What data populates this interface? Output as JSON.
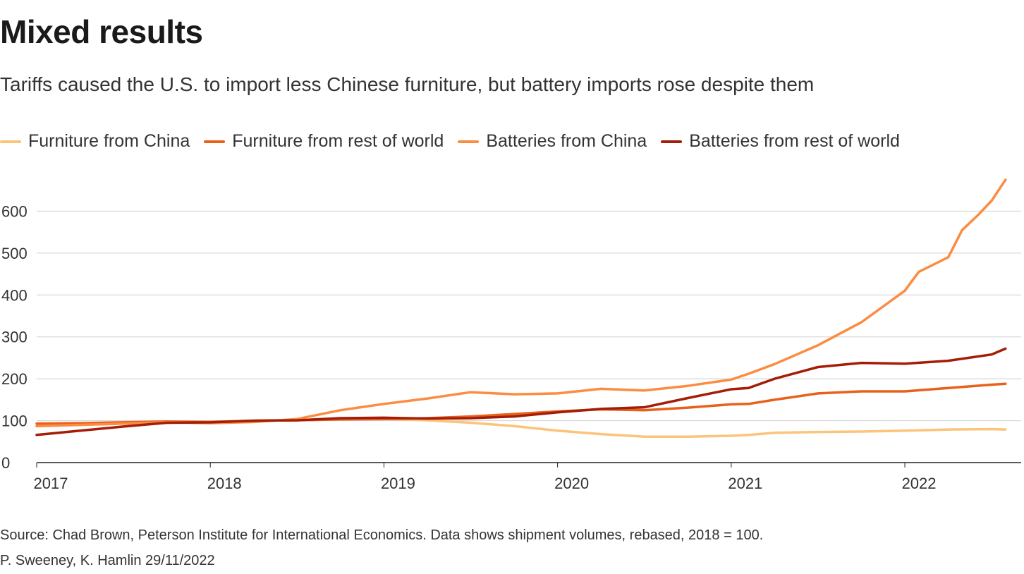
{
  "header": {
    "title": "Mixed results",
    "subtitle": "Tariffs caused the U.S. to import less Chinese furniture, but battery imports rose despite them"
  },
  "footer": {
    "source": "Source: Chad Brown, Peterson Institute for International Economics. Data shows shipment volumes, rebased, 2018 = 100.",
    "byline": "P. Sweeney, K. Hamlin 29/11/2022"
  },
  "chart_data": {
    "type": "line",
    "title": "Mixed results",
    "subtitle": "Tariffs caused the U.S. to import less Chinese furniture, but battery imports rose despite them",
    "xlabel": "",
    "ylabel": "",
    "xlim": [
      2017.0,
      2022.67
    ],
    "ylim": [
      0,
      700
    ],
    "xticks": [
      2017,
      2018,
      2019,
      2020,
      2021,
      2022
    ],
    "xtick_labels": [
      "2017",
      "2018",
      "2019",
      "2020",
      "2021",
      "2022"
    ],
    "yticks": [
      0,
      100,
      200,
      300,
      400,
      500,
      600
    ],
    "ytick_labels": [
      "0",
      "100",
      "200",
      "300",
      "400",
      "500",
      "600"
    ],
    "grid": true,
    "legend_position": "top-left",
    "series": [
      {
        "name": "Furniture from China",
        "color": "#fcc47a",
        "x": [
          2017.0,
          2017.25,
          2017.5,
          2017.75,
          2018.0,
          2018.25,
          2018.5,
          2018.75,
          2019.0,
          2019.25,
          2019.5,
          2019.75,
          2020.0,
          2020.25,
          2020.5,
          2020.75,
          2021.0,
          2021.1,
          2021.25,
          2021.5,
          2021.75,
          2022.0,
          2022.25,
          2022.5,
          2022.58
        ],
        "values": [
          87,
          90,
          93,
          95,
          97,
          100,
          102,
          103,
          104,
          101,
          95,
          87,
          76,
          68,
          62,
          62,
          64,
          66,
          71,
          73,
          74,
          76,
          79,
          80,
          79
        ]
      },
      {
        "name": "Furniture from rest of world",
        "color": "#e8611a",
        "x": [
          2017.0,
          2017.25,
          2017.5,
          2017.75,
          2018.0,
          2018.25,
          2018.5,
          2018.75,
          2019.0,
          2019.25,
          2019.5,
          2019.75,
          2020.0,
          2020.25,
          2020.5,
          2020.75,
          2021.0,
          2021.1,
          2021.25,
          2021.5,
          2021.75,
          2022.0,
          2022.25,
          2022.5,
          2022.58
        ],
        "values": [
          93,
          94,
          96,
          98,
          97,
          100,
          101,
          103,
          104,
          106,
          110,
          116,
          122,
          127,
          125,
          131,
          139,
          140,
          150,
          165,
          170,
          170,
          178,
          186,
          188
        ]
      },
      {
        "name": "Batteries from China",
        "color": "#fb8c42",
        "x": [
          2017.0,
          2017.25,
          2017.5,
          2017.75,
          2018.0,
          2018.25,
          2018.5,
          2018.75,
          2019.0,
          2019.25,
          2019.5,
          2019.75,
          2020.0,
          2020.25,
          2020.5,
          2020.75,
          2021.0,
          2021.1,
          2021.25,
          2021.5,
          2021.75,
          2022.0,
          2022.08,
          2022.25,
          2022.33,
          2022.42,
          2022.5,
          2022.58
        ],
        "values": [
          87,
          90,
          93,
          96,
          94,
          97,
          104,
          125,
          140,
          153,
          168,
          163,
          165,
          176,
          172,
          183,
          198,
          212,
          235,
          280,
          335,
          410,
          455,
          490,
          555,
          590,
          625,
          675
        ]
      },
      {
        "name": "Batteries from rest of world",
        "color": "#a31d07",
        "x": [
          2017.0,
          2017.25,
          2017.5,
          2017.75,
          2018.0,
          2018.25,
          2018.5,
          2018.75,
          2019.0,
          2019.25,
          2019.5,
          2019.75,
          2020.0,
          2020.25,
          2020.5,
          2020.75,
          2021.0,
          2021.1,
          2021.25,
          2021.5,
          2021.75,
          2022.0,
          2022.25,
          2022.5,
          2022.58
        ],
        "values": [
          66,
          76,
          86,
          95,
          96,
          100,
          101,
          106,
          107,
          105,
          106,
          110,
          120,
          128,
          132,
          154,
          175,
          178,
          200,
          228,
          238,
          236,
          243,
          258,
          272
        ]
      }
    ]
  }
}
